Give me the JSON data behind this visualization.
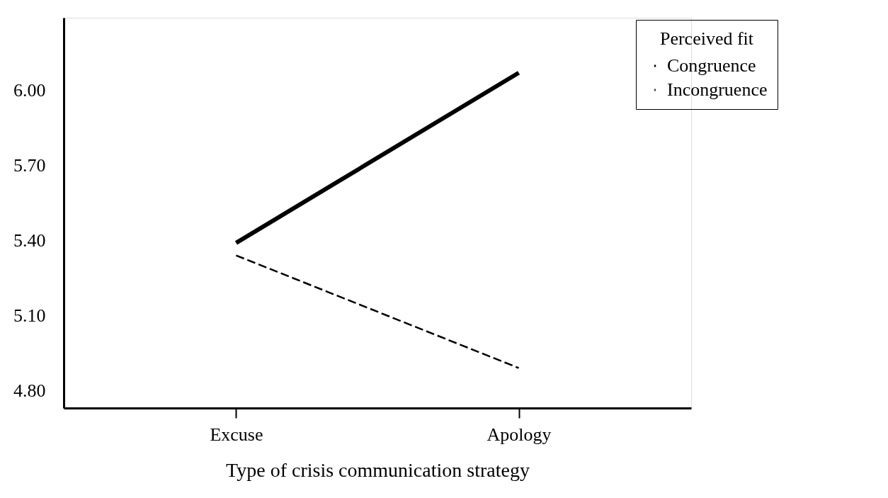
{
  "chart_data": {
    "type": "line",
    "xlabel": "Type of crisis communication strategy",
    "categories": [
      "Excuse",
      "Apology"
    ],
    "legend_title": "Perceived fit",
    "series": [
      {
        "name": "Congruence",
        "color": "#000000",
        "values": [
          5.39,
          6.07
        ],
        "line_style": "solid"
      },
      {
        "name": "Incongruence",
        "color": "#000000",
        "values": [
          5.34,
          4.89
        ],
        "line_style": "dashed"
      }
    ],
    "ylim": [
      4.73,
      6.29
    ],
    "yticks": [
      {
        "value": 4.8,
        "label": "4.80"
      },
      {
        "value": 5.1,
        "label": "5.10"
      },
      {
        "value": 5.4,
        "label": "5.40"
      },
      {
        "value": 5.7,
        "label": "5.70"
      },
      {
        "value": 6.0,
        "label": "6.00"
      }
    ],
    "grid": false,
    "legend": "top right",
    "marker": "none"
  }
}
